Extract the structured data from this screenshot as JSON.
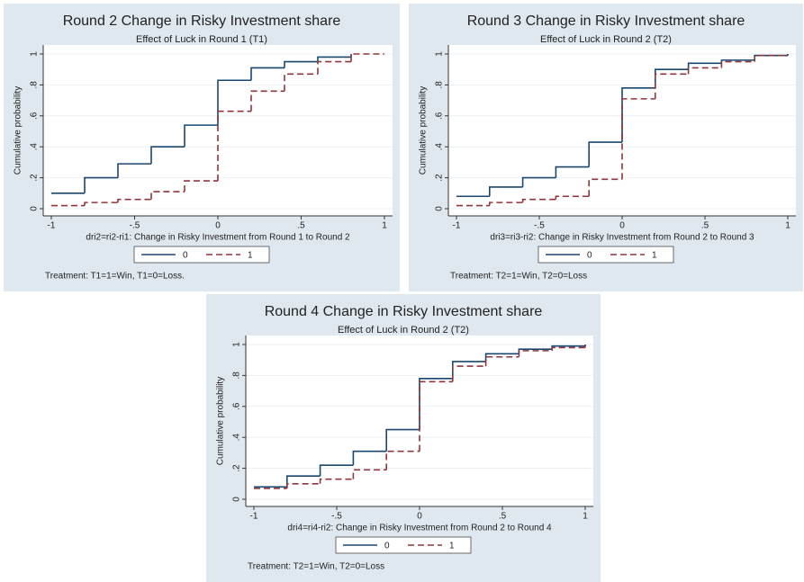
{
  "chart_data": [
    {
      "type": "step",
      "title": "Round 2 Change in Risky Investment share",
      "subtitle": "Effect of Luck in Round 1 (T1)",
      "x_label": "dri2=ri2-ri1: Change in Risky Investment from Round 1 to Round 2",
      "y_label": "Cumulative probability",
      "note": "Treatment: T1=1=Win, T1=0=Loss.",
      "x": [
        -1,
        -0.8,
        -0.6,
        -0.4,
        -0.2,
        0,
        0.2,
        0.4,
        0.6,
        0.8,
        1
      ],
      "series": [
        {
          "name": "0",
          "color": "#1a476f",
          "dash": false,
          "values": [
            0.1,
            0.2,
            0.29,
            0.4,
            0.54,
            0.83,
            0.91,
            0.95,
            0.98,
            1,
            null
          ]
        },
        {
          "name": "1",
          "color": "#90353b",
          "dash": true,
          "values": [
            0.02,
            0.04,
            0.06,
            0.11,
            0.18,
            0.63,
            0.76,
            0.87,
            0.95,
            1,
            1
          ]
        }
      ],
      "xlim": [
        -1,
        1
      ],
      "ylim": [
        0,
        1
      ],
      "xticks": [
        -1,
        {
          "value": -0.5,
          "label": "-.5"
        },
        0,
        {
          "value": 0.5,
          "label": ".5"
        },
        1
      ],
      "yticks": [
        0,
        {
          "value": 0.2,
          "label": ".2"
        },
        {
          "value": 0.4,
          "label": ".4"
        },
        {
          "value": 0.6,
          "label": ".6"
        },
        {
          "value": 0.8,
          "label": ".8"
        },
        1
      ],
      "grid": true
    },
    {
      "type": "step",
      "title": "Round 3 Change in Risky Investment share",
      "subtitle": "Effect of Luck in Round 2 (T2)",
      "x_label": "dri3=ri3-ri2: Change in Risky Investment from Round 2 to Round 3",
      "y_label": "Cumulative probability",
      "note": "Treatment: T2=1=Win, T2=0=Loss",
      "x": [
        -1,
        -0.8,
        -0.6,
        -0.4,
        -0.2,
        0,
        0.2,
        0.4,
        0.6,
        0.8,
        1
      ],
      "series": [
        {
          "name": "0",
          "color": "#1a476f",
          "dash": false,
          "values": [
            0.08,
            0.14,
            0.2,
            0.27,
            0.43,
            0.78,
            0.9,
            0.94,
            0.96,
            0.99,
            1
          ]
        },
        {
          "name": "1",
          "color": "#90353b",
          "dash": true,
          "values": [
            0.02,
            0.04,
            0.06,
            0.08,
            0.19,
            0.71,
            0.87,
            0.91,
            0.95,
            0.99,
            1
          ]
        }
      ],
      "xlim": [
        -1,
        1
      ],
      "ylim": [
        0,
        1
      ],
      "xticks": [
        -1,
        {
          "value": -0.5,
          "label": "-.5"
        },
        0,
        {
          "value": 0.5,
          "label": ".5"
        },
        1
      ],
      "yticks": [
        0,
        {
          "value": 0.2,
          "label": ".2"
        },
        {
          "value": 0.4,
          "label": ".4"
        },
        {
          "value": 0.6,
          "label": ".6"
        },
        {
          "value": 0.8,
          "label": ".8"
        },
        1
      ],
      "grid": true
    },
    {
      "type": "step",
      "title": "Round 4 Change in Risky Investment share",
      "subtitle": "Effect of Luck in Round 2 (T2)",
      "x_label": "dri4=ri4-ri2: Change in Risky Investment from Round 2 to Round 4",
      "y_label": "Cumulative probability",
      "note": "Treatment: T2=1=Win, T2=0=Loss",
      "x": [
        -1,
        -0.8,
        -0.6,
        -0.4,
        -0.2,
        0,
        0.2,
        0.4,
        0.6,
        0.8,
        1
      ],
      "series": [
        {
          "name": "0",
          "color": "#1a476f",
          "dash": false,
          "values": [
            0.08,
            0.15,
            0.22,
            0.31,
            0.45,
            0.78,
            0.89,
            0.94,
            0.97,
            0.99,
            1
          ]
        },
        {
          "name": "1",
          "color": "#90353b",
          "dash": true,
          "values": [
            0.07,
            0.1,
            0.13,
            0.19,
            0.31,
            0.76,
            0.86,
            0.92,
            0.96,
            0.98,
            1
          ]
        }
      ],
      "xlim": [
        -1,
        1
      ],
      "ylim": [
        0,
        1
      ],
      "xticks": [
        -1,
        {
          "value": -0.5,
          "label": "-.5"
        },
        0,
        {
          "value": 0.5,
          "label": ".5"
        },
        1
      ],
      "yticks": [
        0,
        {
          "value": 0.2,
          "label": ".2"
        },
        {
          "value": 0.4,
          "label": ".4"
        },
        {
          "value": 0.6,
          "label": ".6"
        },
        {
          "value": 0.8,
          "label": ".8"
        },
        1
      ],
      "grid": true
    }
  ]
}
